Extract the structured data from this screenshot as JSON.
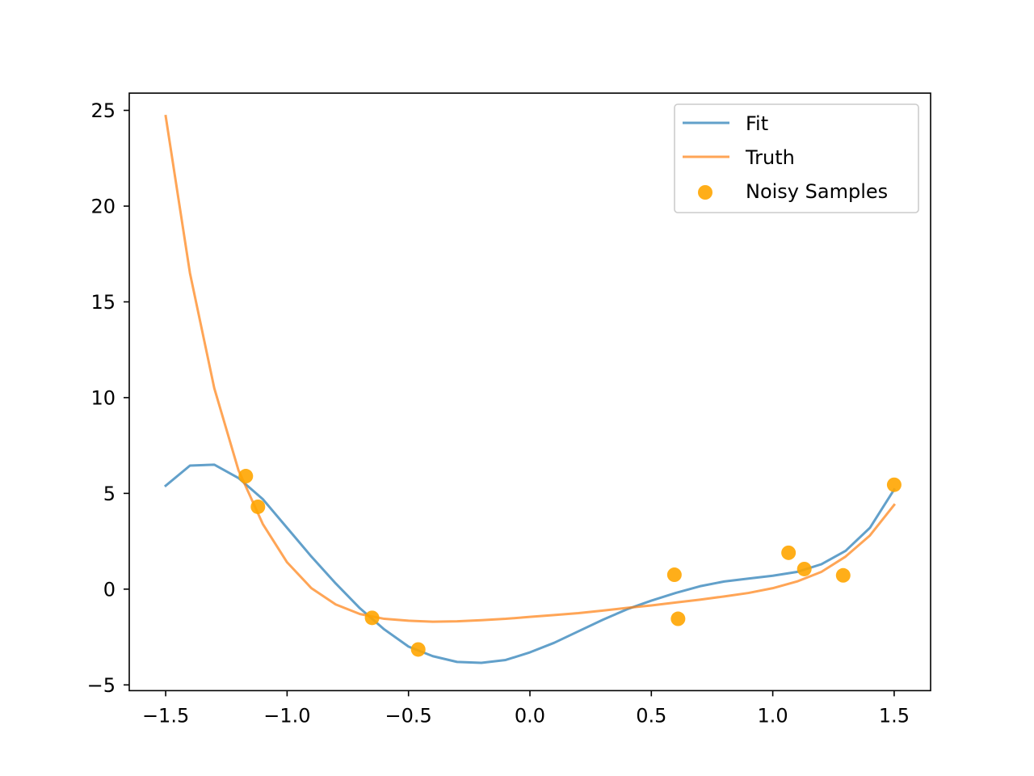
{
  "chart_data": {
    "type": "line",
    "title": "",
    "xlabel": "",
    "ylabel": "",
    "xlim": [
      -1.65,
      1.65
    ],
    "ylim": [
      -5.3,
      25.9
    ],
    "xticks": [
      -1.5,
      -1.0,
      -0.5,
      0.0,
      0.5,
      1.0,
      1.5
    ],
    "xtick_labels": [
      "−1.5",
      "−1.0",
      "−0.5",
      "0.0",
      "0.5",
      "1.0",
      "1.5"
    ],
    "yticks": [
      -5,
      0,
      5,
      10,
      15,
      20,
      25
    ],
    "ytick_labels": [
      "−5",
      "0",
      "5",
      "10",
      "15",
      "20",
      "25"
    ],
    "grid": false,
    "legend_position": "top-right",
    "series": [
      {
        "name": "Fit",
        "kind": "line",
        "color": "#1f77b4",
        "x": [
          -1.5,
          -1.4,
          -1.3,
          -1.2,
          -1.1,
          -1.0,
          -0.9,
          -0.8,
          -0.7,
          -0.6,
          -0.5,
          -0.4,
          -0.3,
          -0.2,
          -0.1,
          0.0,
          0.1,
          0.2,
          0.3,
          0.4,
          0.5,
          0.6,
          0.7,
          0.8,
          0.9,
          1.0,
          1.1,
          1.2,
          1.3,
          1.4,
          1.5
        ],
        "y": [
          5.4,
          6.45,
          6.5,
          5.8,
          4.7,
          3.2,
          1.7,
          0.3,
          -1.0,
          -2.1,
          -3.0,
          -3.5,
          -3.8,
          -3.85,
          -3.7,
          -3.3,
          -2.8,
          -2.2,
          -1.6,
          -1.05,
          -0.6,
          -0.2,
          0.15,
          0.4,
          0.55,
          0.7,
          0.9,
          1.3,
          2.0,
          3.2,
          5.2
        ]
      },
      {
        "name": "Truth",
        "kind": "line",
        "color": "#ff7f0e",
        "x": [
          -1.5,
          -1.4,
          -1.3,
          -1.2,
          -1.1,
          -1.0,
          -0.9,
          -0.8,
          -0.7,
          -0.6,
          -0.5,
          -0.4,
          -0.3,
          -0.2,
          -0.1,
          0.0,
          0.1,
          0.2,
          0.3,
          0.4,
          0.5,
          0.6,
          0.7,
          0.8,
          0.9,
          1.0,
          1.1,
          1.2,
          1.3,
          1.4,
          1.5
        ],
        "y": [
          24.7,
          16.5,
          10.5,
          6.2,
          3.4,
          1.4,
          0.05,
          -0.8,
          -1.3,
          -1.55,
          -1.65,
          -1.7,
          -1.68,
          -1.62,
          -1.55,
          -1.45,
          -1.35,
          -1.25,
          -1.12,
          -0.98,
          -0.85,
          -0.7,
          -0.55,
          -0.38,
          -0.2,
          0.05,
          0.4,
          0.9,
          1.7,
          2.8,
          4.4
        ]
      },
      {
        "name": "Noisy Samples",
        "kind": "scatter",
        "color": "#ffa500",
        "x": [
          -1.17,
          -1.12,
          -0.65,
          -0.46,
          0.595,
          0.61,
          1.065,
          1.13,
          1.29,
          1.5
        ],
        "y": [
          5.9,
          4.3,
          -1.5,
          -3.15,
          0.75,
          -1.55,
          1.9,
          1.05,
          0.72,
          5.45
        ]
      }
    ]
  }
}
